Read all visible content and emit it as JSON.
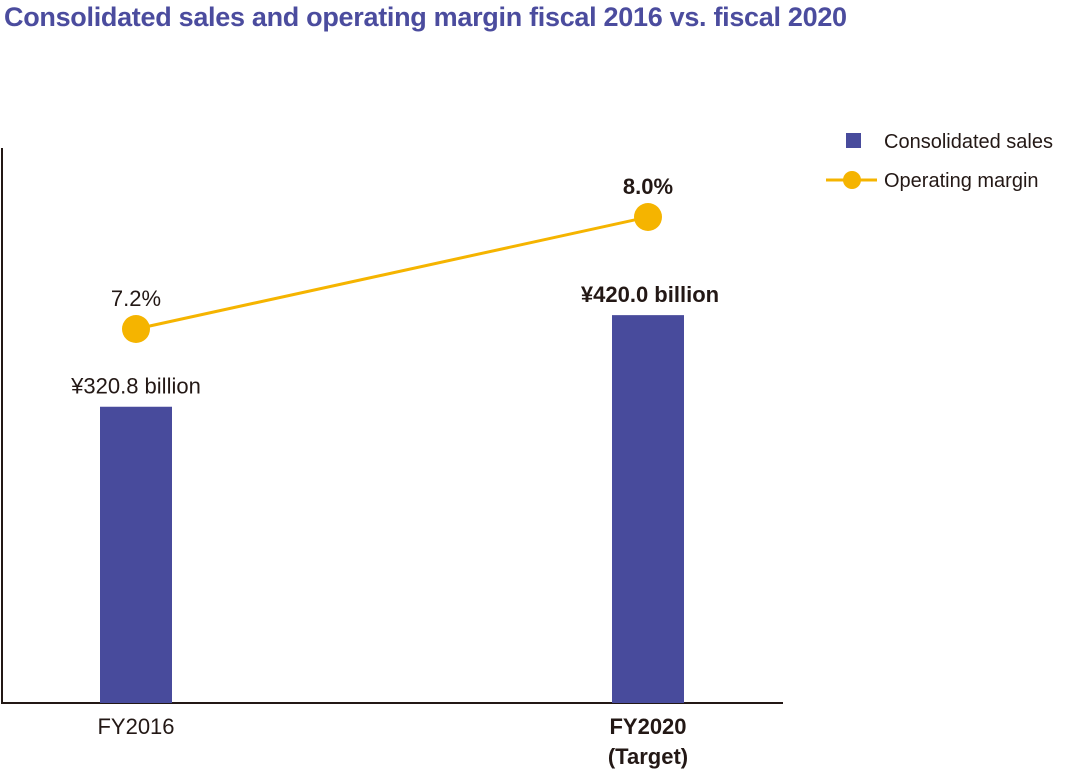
{
  "chart_data": {
    "type": "bar+line",
    "title": "Consolidated sales and operating margin fiscal 2016 vs. fiscal 2020",
    "categories": [
      {
        "label": "FY2016",
        "sublabel": ""
      },
      {
        "label": "FY2020",
        "sublabel": "(Target)"
      }
    ],
    "series": [
      {
        "name": "Consolidated sales",
        "type": "bar",
        "values": [
          320.8,
          420.0
        ],
        "labels": [
          "¥320.8 billion",
          "¥420.0 billion"
        ],
        "color": "#484b9c"
      },
      {
        "name": "Operating margin",
        "type": "line",
        "values": [
          7.2,
          8.0
        ],
        "labels": [
          "7.2%",
          "8.0%"
        ],
        "color": "#f5b400"
      }
    ],
    "legend_position": "top-right",
    "grid": false,
    "emphasized_category": "FY2020"
  }
}
